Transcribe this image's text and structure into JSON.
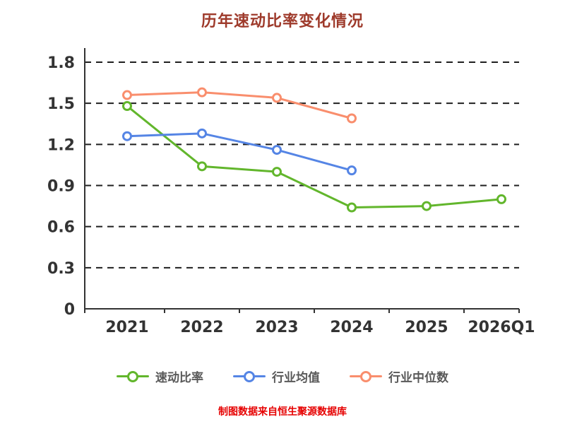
{
  "chart_data": {
    "type": "line",
    "title": "历年速动比率变化情况",
    "categories": [
      "2021",
      "2022",
      "2023",
      "2024",
      "2025",
      "2026Q1"
    ],
    "series": [
      {
        "name": "速动比率",
        "color": "#62B62C",
        "values": [
          1.48,
          1.04,
          1.0,
          0.74,
          0.75,
          0.8
        ]
      },
      {
        "name": "行业均值",
        "color": "#5585E5",
        "values": [
          1.26,
          1.28,
          1.16,
          1.01,
          null,
          null
        ]
      },
      {
        "name": "行业中位数",
        "color": "#F98E6D",
        "values": [
          1.56,
          1.58,
          1.54,
          1.39,
          null,
          null
        ]
      }
    ],
    "ylim": [
      0,
      1.8
    ],
    "yticks": [
      0,
      0.3,
      0.6,
      0.9,
      1.2,
      1.5,
      1.8
    ],
    "grid": "dashed",
    "legend_position": "bottom"
  },
  "colors": {
    "title": "#9E3A2B",
    "axis": "#333333",
    "grid": "#1f1f1f",
    "footer": "#E60000"
  },
  "footer": {
    "note": "制图数据来自恒生聚源数据库"
  }
}
